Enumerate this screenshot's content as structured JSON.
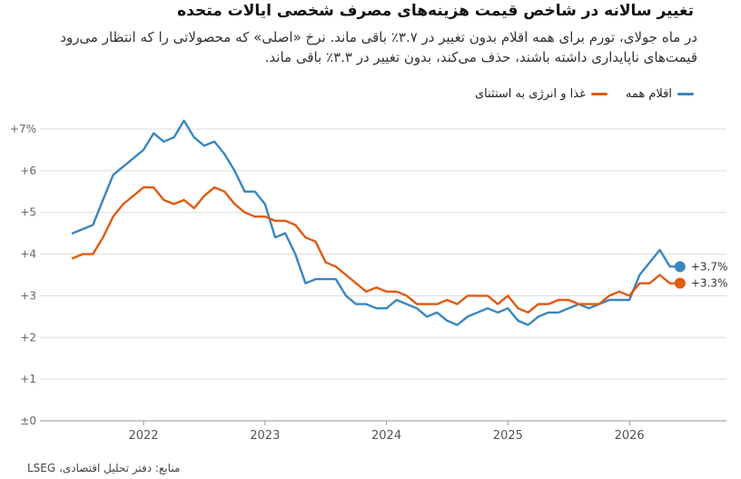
{
  "header": {
    "title": "تغییر سالانه در شاخص قیمت هزینه‌های مصرف شخصی ایالات متحده",
    "subtitle": "در ماه جولای، تورم برای همه اقلام بدون تغییر در ۳.۷٪ باقی ماند. نرخ «اصلی» که محصولاتی را که انتظار می‌رود قیمت‌های ناپایداری داشته باشند، حذف می‌کند، بدون تغییر در ۳.۳٪ باقی ماند."
  },
  "footer": {
    "source": "منابع: دفتر تحلیل اقتصادی، LSEG"
  },
  "colors": {
    "all_items": "#3a86bf",
    "core": "#e05a12",
    "grid": "#d9d9d9"
  },
  "chart_data": {
    "type": "line",
    "title": "تغییر سالانه در شاخص قیمت هزینه‌های مصرف شخصی ایالات متحده",
    "ylim": [
      0,
      7
    ],
    "yticks": [
      {
        "value": 0,
        "label": "±0"
      },
      {
        "value": 1,
        "label": "+1"
      },
      {
        "value": 2,
        "label": "+2"
      },
      {
        "value": 3,
        "label": "+3"
      },
      {
        "value": 4,
        "label": "+4"
      },
      {
        "value": 5,
        "label": "+5"
      },
      {
        "value": 6,
        "label": "+6"
      },
      {
        "value": 7,
        "label": "+7%"
      }
    ],
    "xticks": [
      {
        "month": "2022-01",
        "label": "2022"
      },
      {
        "month": "2023-01",
        "label": "2023"
      },
      {
        "month": "2024-01",
        "label": "2024"
      },
      {
        "month": "2025-01",
        "label": "2025"
      },
      {
        "month": "2026-01",
        "label": "2026"
      }
    ],
    "x_start": "2021-06",
    "x_end": "2026-07",
    "grid": true,
    "legend_position": "top-right",
    "series": [
      {
        "name": "اقلام همه",
        "color": "#3a86bf",
        "end_label": "+3.7%",
        "values": [
          4.5,
          4.6,
          4.7,
          5.3,
          5.9,
          6.1,
          6.3,
          6.5,
          6.9,
          6.7,
          6.8,
          7.2,
          6.8,
          6.6,
          6.7,
          6.4,
          6.0,
          5.5,
          5.5,
          5.2,
          4.4,
          4.5,
          4.0,
          3.3,
          3.4,
          3.4,
          3.4,
          3.0,
          2.8,
          2.8,
          2.7,
          2.7,
          2.9,
          2.8,
          2.7,
          2.5,
          2.6,
          2.4,
          2.3,
          2.5,
          2.6,
          2.7,
          2.6,
          2.7,
          2.4,
          2.3,
          2.5,
          2.6,
          2.6,
          2.7,
          2.8,
          2.7,
          2.8,
          2.9,
          2.9,
          2.9,
          3.5,
          3.8,
          4.1,
          3.7,
          3.7
        ]
      },
      {
        "name": "غذا و انرژی به استثنای",
        "color": "#e05a12",
        "end_label": "+3.3%",
        "values": [
          3.9,
          4.0,
          4.0,
          4.4,
          4.9,
          5.2,
          5.4,
          5.6,
          5.6,
          5.3,
          5.2,
          5.3,
          5.1,
          5.4,
          5.6,
          5.5,
          5.2,
          5.0,
          4.9,
          4.9,
          4.8,
          4.8,
          4.7,
          4.4,
          4.3,
          3.8,
          3.7,
          3.5,
          3.3,
          3.1,
          3.2,
          3.1,
          3.1,
          3.0,
          2.8,
          2.8,
          2.8,
          2.9,
          2.8,
          3.0,
          3.0,
          3.0,
          2.8,
          3.0,
          2.7,
          2.6,
          2.8,
          2.8,
          2.9,
          2.9,
          2.8,
          2.8,
          2.8,
          3.0,
          3.1,
          3.0,
          3.3,
          3.3,
          3.5,
          3.3,
          3.3
        ]
      }
    ]
  }
}
